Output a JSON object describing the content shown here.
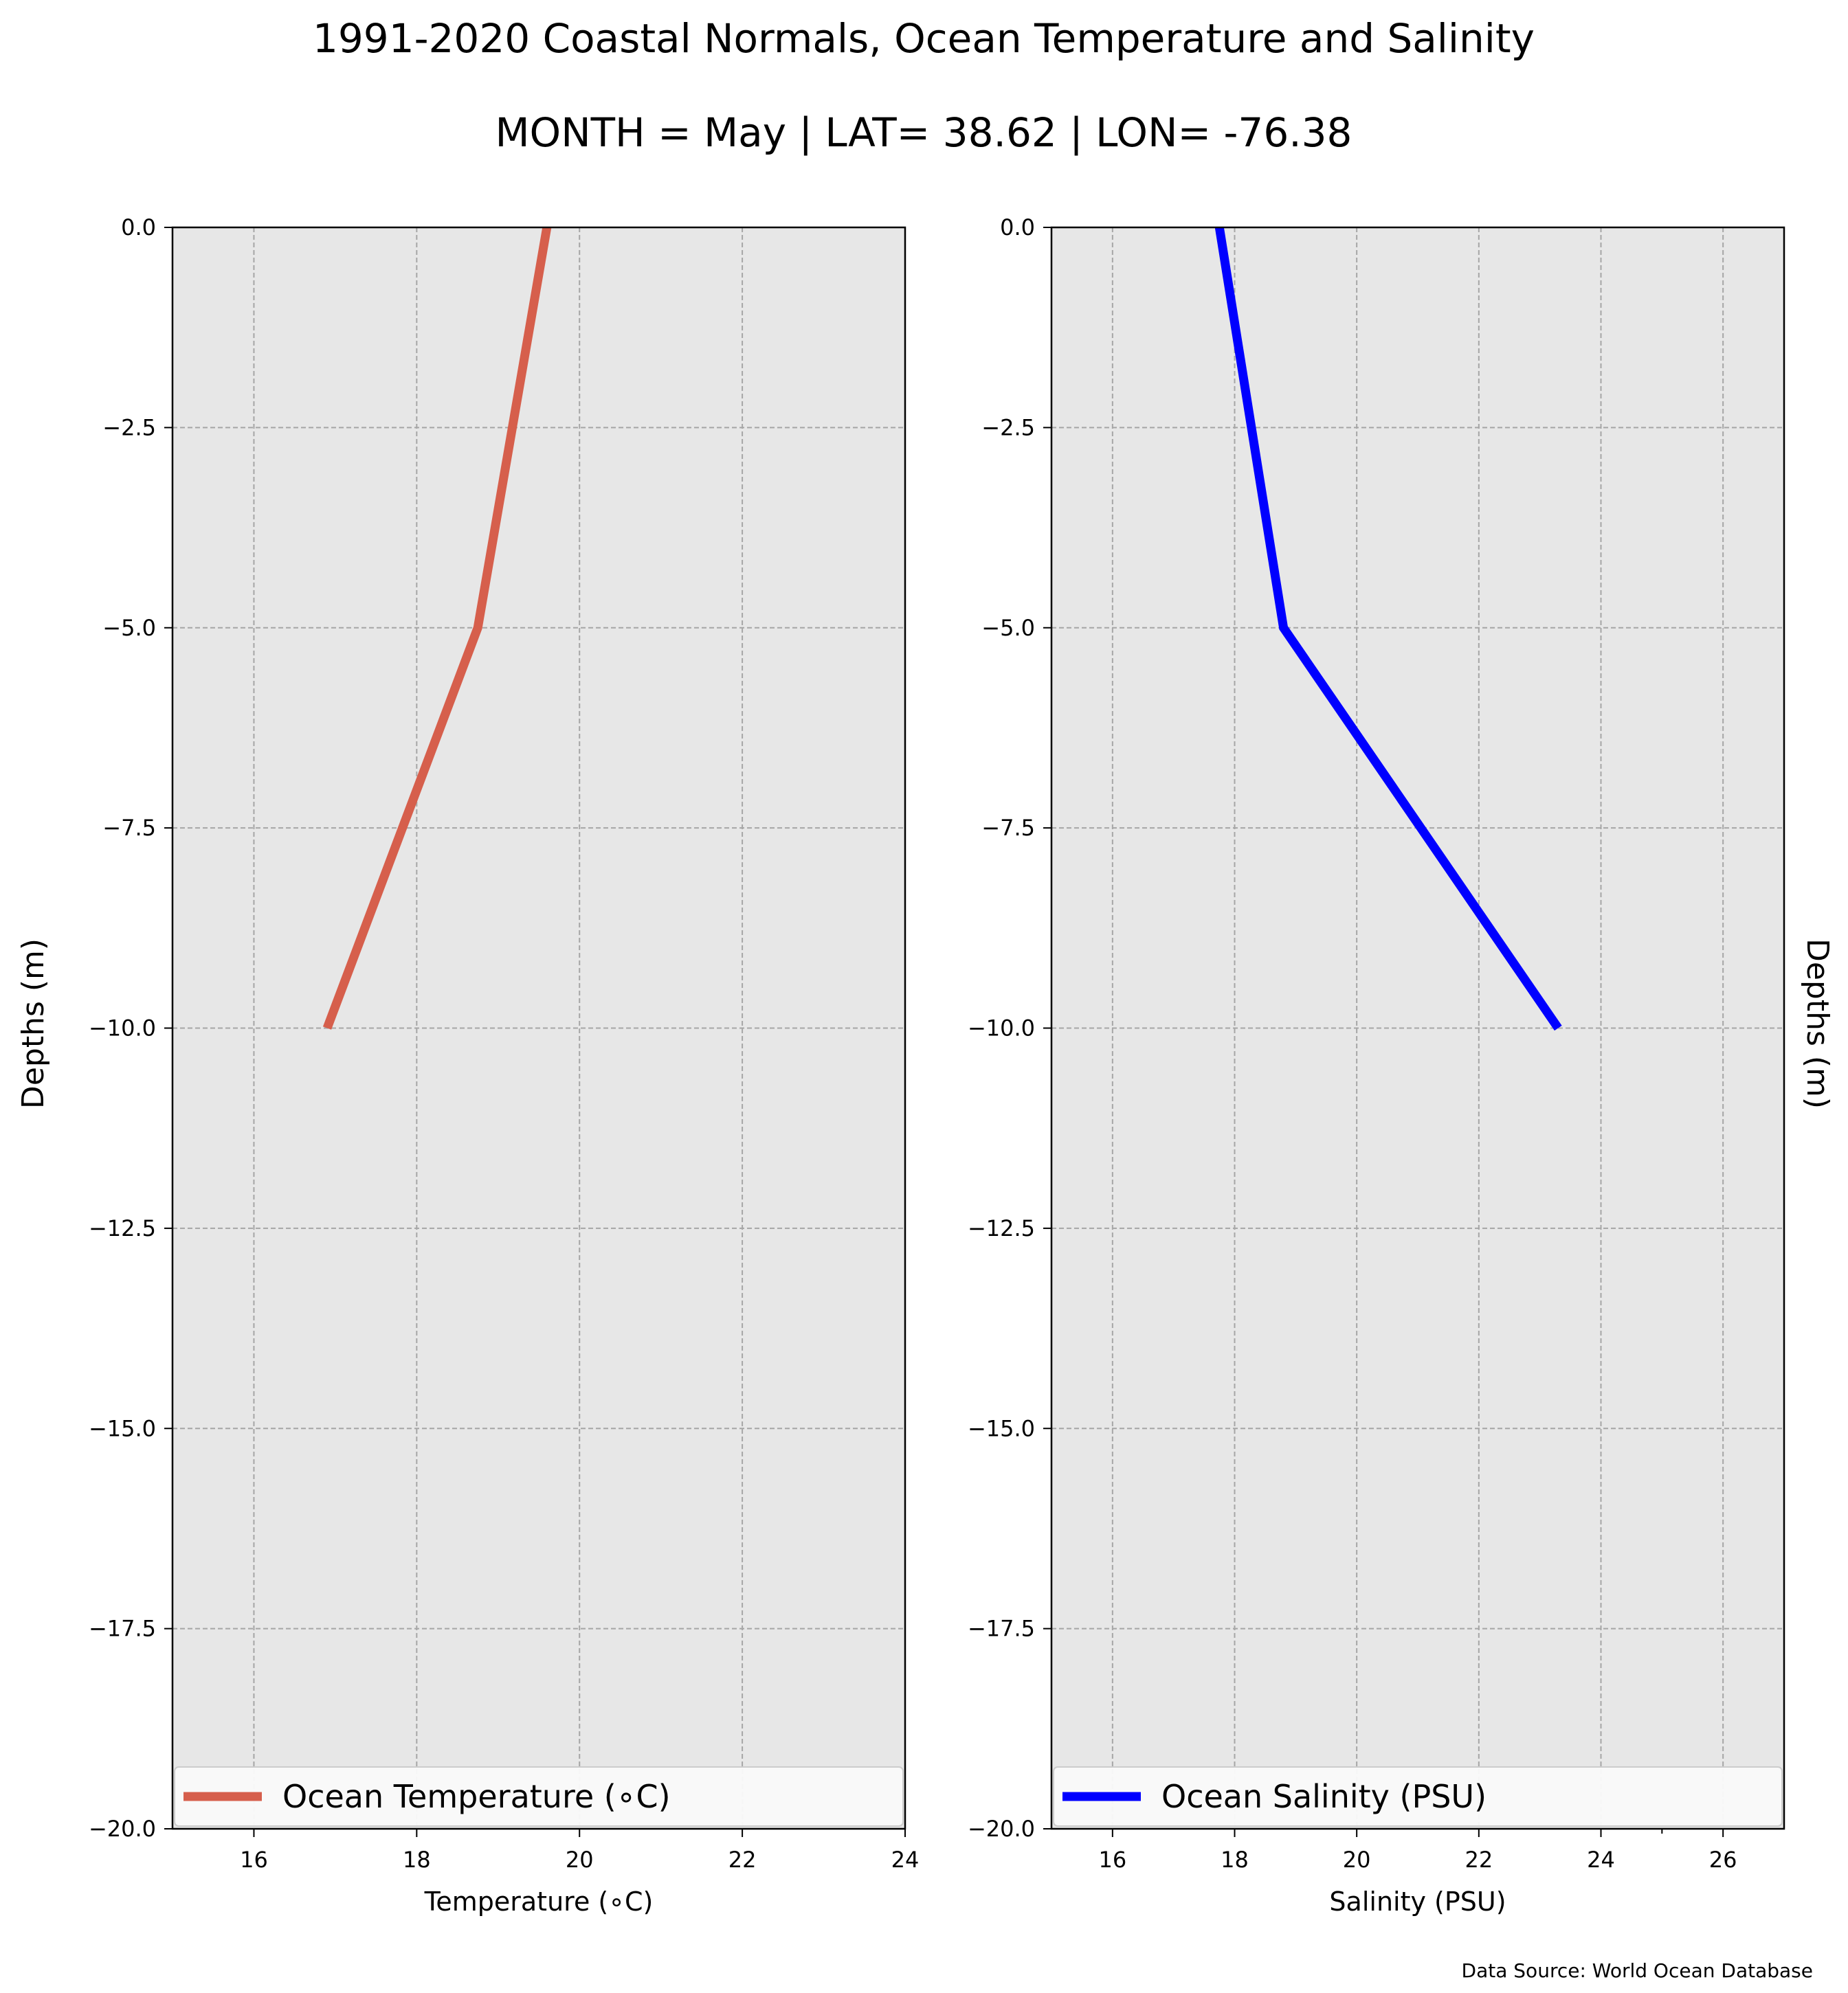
{
  "title": "1991-2020 Coastal Normals, Ocean Temperature and Salinity",
  "subtitle": "MONTH = May | LAT= 38.62 | LON= -76.38",
  "source": "Data Source: World Ocean Database",
  "chart_data": [
    {
      "type": "line",
      "xlabel": "Temperature (∘C)",
      "ylabel": "Depths (m)",
      "xlim": [
        15,
        24
      ],
      "ylim": [
        -20,
        0
      ],
      "xticks": [
        "16",
        "18",
        "20",
        "22",
        "24"
      ],
      "yticks": [
        "0.0",
        "−2.5",
        "−5.0",
        "−7.5",
        "−10.0",
        "−12.5",
        "−15.0",
        "−17.5",
        "−20.0"
      ],
      "grid": true,
      "legend_position": "bottom",
      "series": [
        {
          "name": "Ocean Temperature (∘C)",
          "color": "#d65f4c",
          "x": [
            19.6,
            18.75,
            16.9
          ],
          "y": [
            0,
            -5,
            -10
          ]
        }
      ]
    },
    {
      "type": "line",
      "xlabel": "Salinity (PSU)",
      "ylabel": "Depths (m)",
      "xlim": [
        15,
        27
      ],
      "ylim": [
        -20,
        0
      ],
      "xticks": [
        "16",
        "18",
        "20",
        "22",
        "24",
        "26"
      ],
      "yticks": [
        "0.0",
        "−2.5",
        "−5.0",
        "−7.5",
        "−10.0",
        "−12.5",
        "−15.0",
        "−17.5",
        "−20.0"
      ],
      "grid": true,
      "legend_position": "bottom",
      "series": [
        {
          "name": "Ocean Salinity (PSU)",
          "color": "#0000ff",
          "x": [
            17.75,
            18.8,
            23.3
          ],
          "y": [
            0,
            -5,
            -10
          ]
        }
      ]
    }
  ]
}
